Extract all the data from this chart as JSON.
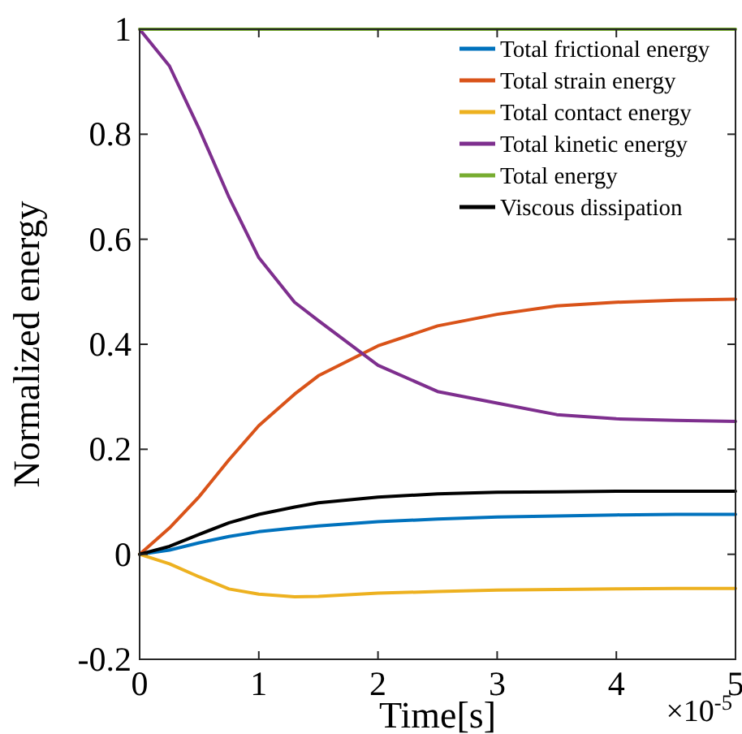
{
  "chart_data": {
    "type": "line",
    "xlabel": "Time[s]",
    "ylabel": "Normalized energy",
    "annotations": [
      "×10$^{-5}$"
    ],
    "x": [
      0,
      0.25,
      0.5,
      0.75,
      1,
      1.3,
      1.5,
      2,
      2.5,
      3,
      3.5,
      4,
      4.5,
      5
    ],
    "series": [
      {
        "name": "Total frictional energy",
        "color": "#0072bd",
        "values": [
          0,
          0.008,
          0.022,
          0.034,
          0.043,
          0.05,
          0.054,
          0.062,
          0.067,
          0.071,
          0.073,
          0.075,
          0.076,
          0.076
        ]
      },
      {
        "name": "Total strain energy",
        "color": "#d95319",
        "values": [
          0,
          0.05,
          0.11,
          0.18,
          0.245,
          0.305,
          0.34,
          0.397,
          0.435,
          0.457,
          0.473,
          0.48,
          0.484,
          0.486
        ]
      },
      {
        "name": "Total contact energy",
        "color": "#edb120",
        "values": [
          0,
          -0.018,
          -0.043,
          -0.066,
          -0.076,
          -0.081,
          -0.08,
          -0.074,
          -0.071,
          -0.068,
          -0.067,
          -0.066,
          -0.065,
          -0.065
        ]
      },
      {
        "name": "Total kinetic energy",
        "color": "#7e2f8e",
        "values": [
          1,
          0.93,
          0.81,
          0.68,
          0.565,
          0.48,
          0.445,
          0.36,
          0.31,
          0.288,
          0.266,
          0.258,
          0.255,
          0.253
        ]
      },
      {
        "name": "Total energy",
        "color": "#77ac30",
        "values": [
          1,
          1,
          1,
          1,
          1,
          1,
          1,
          1,
          1,
          1,
          1,
          1,
          1,
          1
        ]
      },
      {
        "name": "Viscous dissipation",
        "color": "#000000",
        "values": [
          0,
          0.015,
          0.038,
          0.06,
          0.076,
          0.09,
          0.098,
          0.109,
          0.115,
          0.118,
          0.119,
          0.12,
          0.12,
          0.12
        ]
      }
    ],
    "xlim": [
      0,
      5
    ],
    "xticks": [
      0,
      1,
      2,
      3,
      4,
      5
    ],
    "ylim": [
      -0.2,
      1
    ],
    "yticks": [
      -0.2,
      0,
      0.2,
      0.4,
      0.6,
      0.8,
      1
    ],
    "grid": false,
    "legend": "top right",
    "marker": "none",
    "line_style": "solid"
  }
}
